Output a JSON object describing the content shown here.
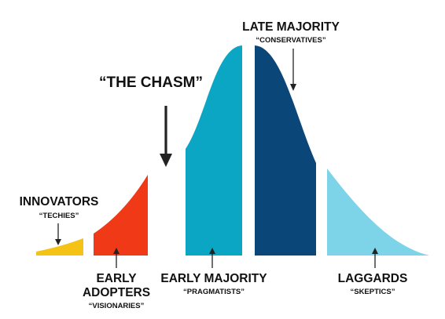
{
  "colors": {
    "innovators": "#F5C216",
    "early_adopters": "#F03A17",
    "early_majority": "#0AA6C4",
    "late_majority": "#0B4678",
    "laggards": "#7DD3E8",
    "chasm_text": "#E8231B",
    "text": "#111111"
  },
  "chasm": {
    "title": "“THE CHASM”"
  },
  "segments": [
    {
      "key": "innovators",
      "name": "INNOVATORS",
      "alias": "“TECHIES”"
    },
    {
      "key": "early_adopters",
      "name_line1": "EARLY",
      "name_line2": "ADOPTERS",
      "alias": "“VISIONARIES”"
    },
    {
      "key": "early_majority",
      "name": "EARLY MAJORITY",
      "alias": "“PRAGMATISTS”"
    },
    {
      "key": "late_majority",
      "name": "LATE MAJORITY",
      "alias": "“CONSERVATIVES”"
    },
    {
      "key": "laggards",
      "name": "LAGGARDS",
      "alias": "“SKEPTICS”"
    }
  ]
}
